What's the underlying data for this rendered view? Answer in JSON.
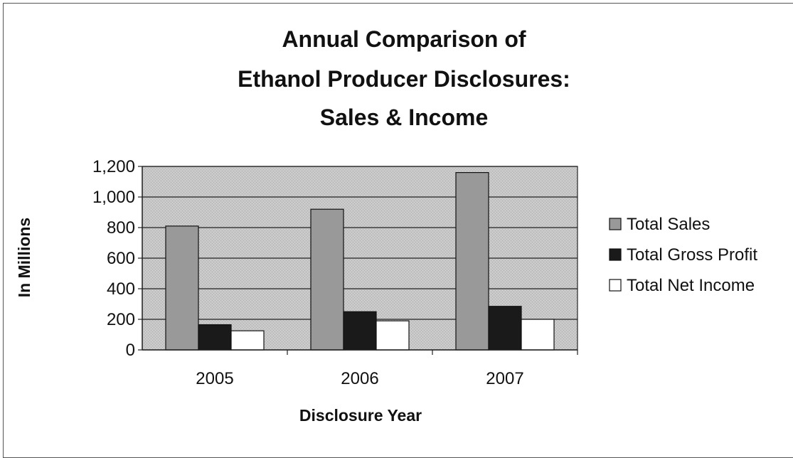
{
  "chart_data": {
    "type": "bar",
    "title_lines": [
      "Annual Comparison of",
      "Ethanol Producer Disclosures:",
      "Sales & Income"
    ],
    "categories": [
      "2005",
      "2006",
      "2007"
    ],
    "series": [
      {
        "name": "Total Sales",
        "values": [
          810,
          920,
          1160
        ],
        "color": "#999999"
      },
      {
        "name": "Total Gross Profit",
        "values": [
          165,
          250,
          285
        ],
        "color": "#1a1a1a"
      },
      {
        "name": "Total Net Income",
        "values": [
          125,
          190,
          200
        ],
        "color": "#ffffff"
      }
    ],
    "xlabel": "Disclosure Year",
    "ylabel": "In Millions",
    "ylim": [
      0,
      1200
    ],
    "yticks": [
      0,
      200,
      400,
      600,
      800,
      1000,
      1200
    ],
    "ytick_labels": [
      "0",
      "200",
      "400",
      "600",
      "800",
      "1,000",
      "1,200"
    ],
    "grid": true,
    "plot_background": "#c8c8c8",
    "legend_position": "right"
  }
}
